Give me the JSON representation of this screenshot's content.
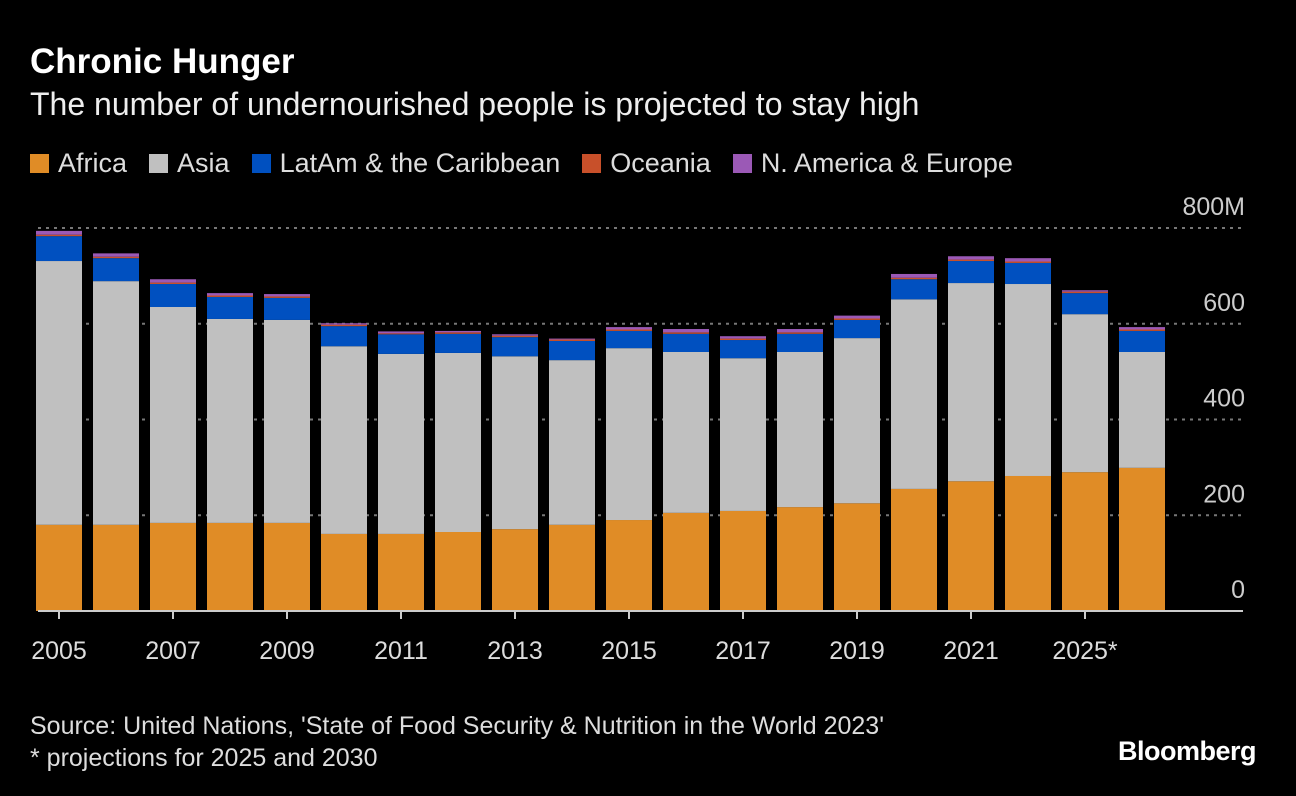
{
  "chart_data": {
    "type": "bar",
    "stacked": true,
    "title": "Chronic Hunger",
    "subtitle": "The number of undernourished people is projected to stay high",
    "categories": [
      "2005",
      "2006",
      "2007",
      "2008",
      "2009",
      "2010",
      "2011",
      "2012",
      "2013",
      "2014",
      "2015",
      "2016",
      "2017",
      "2018",
      "2019",
      "2020",
      "2021",
      "2022",
      "2025*",
      "2030"
    ],
    "tick_labels": [
      "2005",
      "2007",
      "2009",
      "2011",
      "2013",
      "2015",
      "2017",
      "2019",
      "2021",
      "2025*"
    ],
    "series": [
      {
        "name": "Africa",
        "color": "#e08c26",
        "values": [
          180,
          180,
          184,
          184,
          184,
          161,
          161,
          165,
          171,
          180,
          190,
          205,
          209,
          217,
          225,
          255,
          271,
          282,
          290,
          299
        ]
      },
      {
        "name": "Asia",
        "color": "#c0c0c0",
        "values": [
          551,
          509,
          451,
          426,
          424,
          392,
          376,
          374,
          361,
          344,
          359,
          336,
          319,
          324,
          345,
          396,
          414,
          401,
          330,
          242
        ]
      },
      {
        "name": "LatAm & the Caribbean",
        "color": "#0050c0",
        "values": [
          52,
          48,
          48,
          46,
          46,
          42,
          41,
          40,
          40,
          40,
          36,
          38,
          38,
          38,
          38,
          42,
          46,
          44,
          44,
          44
        ]
      },
      {
        "name": "Oceania",
        "color": "#c8502a",
        "values": [
          3,
          3,
          3,
          3,
          3,
          3,
          2,
          3,
          3,
          3,
          3,
          3,
          3,
          3,
          3,
          3,
          3,
          3,
          3,
          3
        ]
      },
      {
        "name": "N. America & Europe",
        "color": "#9b59b6",
        "values": [
          8,
          7,
          7,
          5,
          5,
          3,
          4,
          3,
          3,
          2,
          5,
          7,
          5,
          7,
          6,
          8,
          7,
          7,
          3,
          5
        ]
      }
    ],
    "yticks": [
      0,
      200,
      400,
      600,
      800
    ],
    "ytick_labels": [
      "0",
      "200",
      "400",
      "600",
      "800M"
    ],
    "ylim": [
      0,
      800
    ],
    "grid": true,
    "legend_position": "top-left"
  },
  "source": "Source: United Nations, 'State of Food Security & Nutrition in the World 2023'",
  "note": "* projections for 2025 and 2030",
  "logo": "Bloomberg"
}
